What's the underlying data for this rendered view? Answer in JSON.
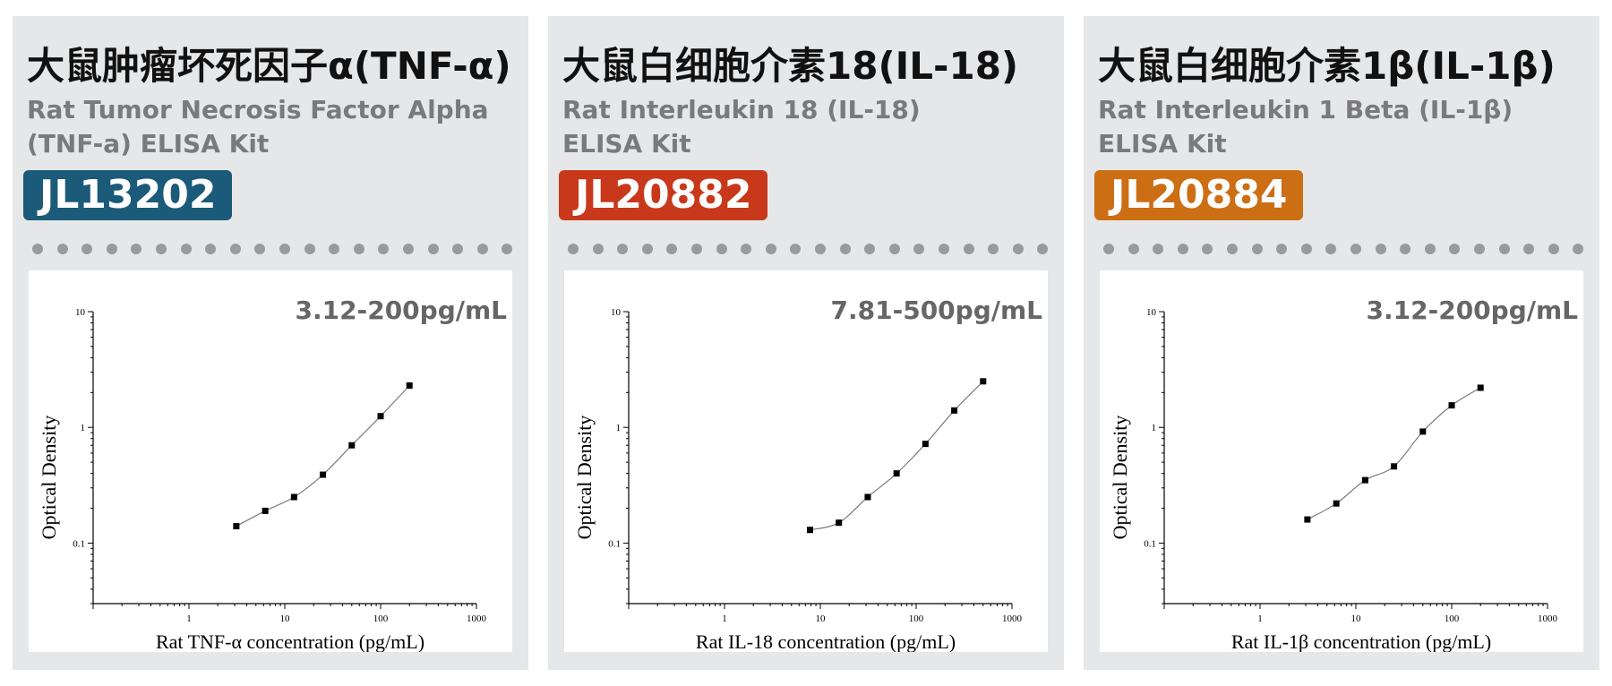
{
  "colors": {
    "card_bg": "#e6e7e9",
    "dot": "#9a9a9a"
  },
  "cards": [
    {
      "title_cn": "大鼠肿瘤坏死因子α(TNF-α)",
      "title_en_line1": "Rat Tumor Necrosis Factor Alpha",
      "title_en_line2": "(TNF-a) ELISA Kit",
      "catalog": "JL13202",
      "badge_color": "#1b5a78",
      "range": "3.12-200pg/mL"
    },
    {
      "title_cn": "大鼠白细胞介素18(IL-18)",
      "title_en_line1": "Rat Interleukin 18 (IL-18)",
      "title_en_line2": "ELISA Kit",
      "catalog": "JL20882",
      "badge_color": "#c8381b",
      "range": "7.81-500pg/mL"
    },
    {
      "title_cn": "大鼠白细胞介素1β(IL-1β)",
      "title_en_line1": "Rat Interleukin 1 Beta (IL-1β)",
      "title_en_line2": "ELISA Kit",
      "catalog": "JL20884",
      "badge_color": "#cc6e14",
      "range": "3.12-200pg/mL"
    }
  ],
  "chart_data": [
    {
      "type": "scatter",
      "xscale": "log",
      "yscale": "log",
      "xlim": [
        0.1,
        1000
      ],
      "ylim": [
        0.03,
        10
      ],
      "xticks": [
        "1",
        "10",
        "100",
        "1000"
      ],
      "yticks": [
        "0.1",
        "1",
        "10"
      ],
      "xlabel": "Rat TNF-α concentration (pg/mL)",
      "ylabel": "Optical Density",
      "x": [
        3.12,
        6.25,
        12.5,
        25,
        50,
        100,
        200
      ],
      "y": [
        0.14,
        0.19,
        0.25,
        0.39,
        0.7,
        1.25,
        2.3
      ],
      "fit_curve": true
    },
    {
      "type": "scatter",
      "xscale": "log",
      "yscale": "log",
      "xlim": [
        0.1,
        1000
      ],
      "ylim": [
        0.03,
        10
      ],
      "xticks": [
        "1",
        "10",
        "100",
        "1000"
      ],
      "yticks": [
        "0.1",
        "1",
        "10"
      ],
      "xlabel": "Rat IL-18 concentration (pg/mL)",
      "ylabel": "Optical Density",
      "x": [
        7.81,
        15.6,
        31.25,
        62.5,
        125,
        250,
        500
      ],
      "y": [
        0.13,
        0.15,
        0.25,
        0.4,
        0.72,
        1.4,
        2.5
      ],
      "fit_curve": true
    },
    {
      "type": "scatter",
      "xscale": "log",
      "yscale": "log",
      "xlim": [
        0.1,
        1000
      ],
      "ylim": [
        0.03,
        10
      ],
      "xticks": [
        "1",
        "10",
        "100",
        "1000"
      ],
      "yticks": [
        "0.1",
        "1",
        "10"
      ],
      "xlabel": "Rat IL-1β concentration (pg/mL)",
      "ylabel": "Optical Density",
      "x": [
        3.12,
        6.25,
        12.5,
        25,
        50,
        100,
        200
      ],
      "y": [
        0.16,
        0.22,
        0.35,
        0.46,
        0.92,
        1.55,
        2.2
      ],
      "fit_curve": true
    }
  ]
}
